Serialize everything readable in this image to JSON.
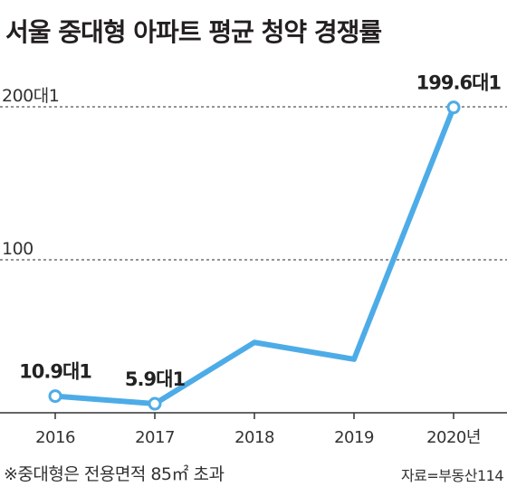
{
  "chart_data": {
    "type": "line",
    "title": "서울 중대형 아파트 평균 청약 경쟁률",
    "categories": [
      "2016",
      "2017",
      "2018",
      "2019",
      "2020년"
    ],
    "values": [
      10.9,
      5.9,
      46,
      35,
      199.6
    ],
    "data_labels": [
      "10.9대1",
      "5.9대1",
      "",
      "",
      "199.6대1"
    ],
    "y_tick_labels": [
      "200대1",
      "100"
    ],
    "y_ticks": [
      200,
      100
    ],
    "ylim": [
      0,
      200
    ],
    "grid": "dashed horizontal at ticks",
    "legend": "none",
    "note": "※중대형은 전용면적 85㎡ 초과",
    "source": "자료=부동산114"
  },
  "colors": {
    "line": "#4dace7",
    "marker_fill": "#ffffff",
    "grid": "#555555",
    "axis": "#333333",
    "text": "#222222"
  }
}
